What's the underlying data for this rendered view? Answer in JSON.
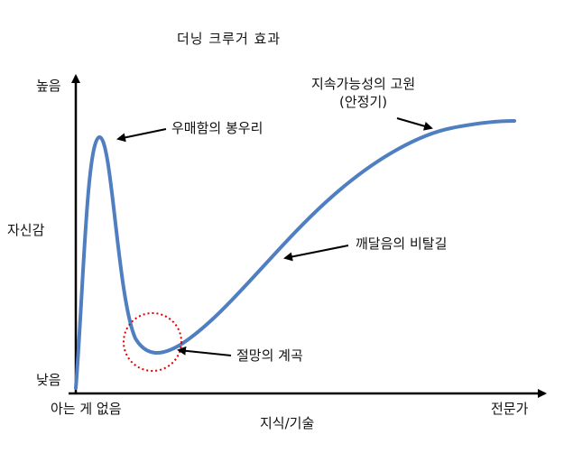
{
  "title": "더닝 크루거 효과",
  "axes": {
    "y_title": "자신감",
    "y_high": "높음",
    "y_low": "낮음",
    "x_title": "지식/기술",
    "x_left": "아는 게 없음",
    "x_right": "전문가"
  },
  "annotations": {
    "peak": "우매함의 봉우리",
    "plateau_line1": "지속가능성의 고원",
    "plateau_line2": "(안정기)",
    "slope": "깨달음의 비탈길",
    "valley": "절망의 계곡"
  },
  "colors": {
    "curve": "#4f7fc0",
    "axis": "#000000",
    "highlight_circle": "#e00000"
  }
}
